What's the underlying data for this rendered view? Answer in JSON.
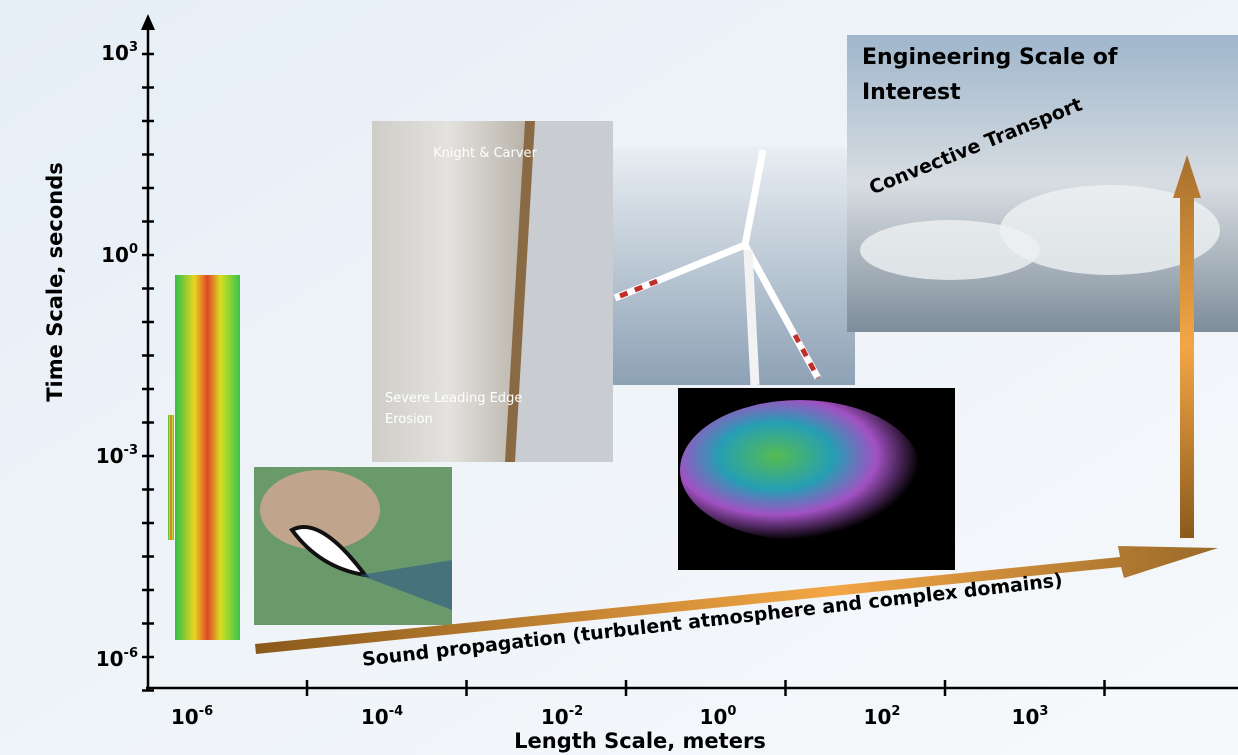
{
  "y_axis": {
    "title": "Time Scale, seconds",
    "ticks": [
      {
        "base": "10",
        "exp": "3"
      },
      {
        "base": "10",
        "exp": "0"
      },
      {
        "base": "10",
        "exp": "-3"
      },
      {
        "base": "10",
        "exp": "-6"
      }
    ]
  },
  "x_axis": {
    "title": "Length Scale, meters",
    "ticks": [
      {
        "base": "10",
        "exp": "-6"
      },
      {
        "base": "10",
        "exp": "-4"
      },
      {
        "base": "10",
        "exp": "-2"
      },
      {
        "base": "10",
        "exp": "0"
      },
      {
        "base": "10",
        "exp": "2"
      },
      {
        "base": "10",
        "exp": "3"
      }
    ]
  },
  "images": {
    "erosion": {
      "credit": "Knight & Carver",
      "caption": "Severe Leading Edge Erosion"
    },
    "clouds": {
      "title": "Engineering Scale of Interest",
      "label": "Convective Transport"
    }
  },
  "arrow_label": "Sound propagation (turbulent atmosphere and complex domains)"
}
